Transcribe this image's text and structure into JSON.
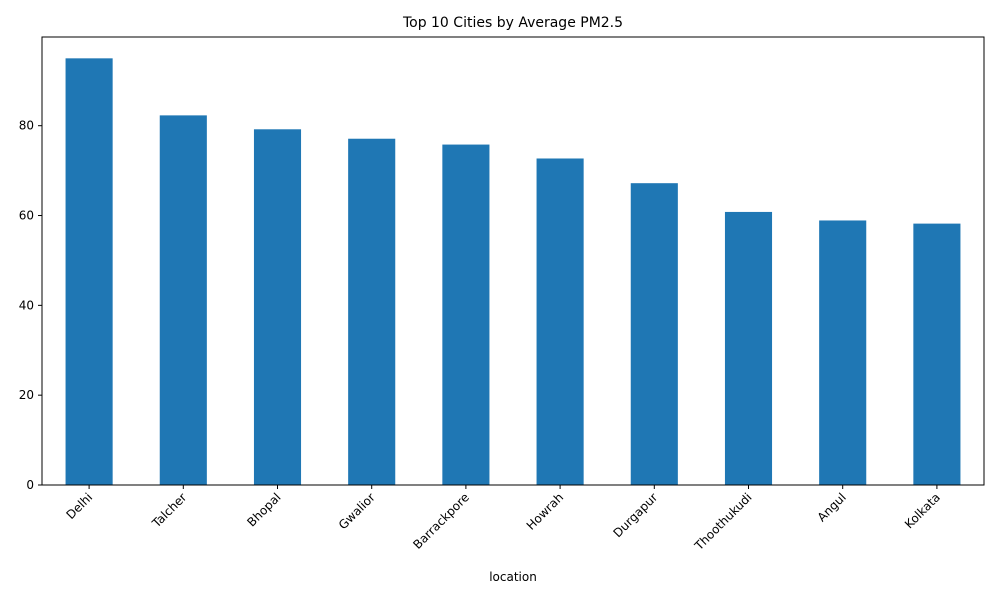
{
  "chart_data": {
    "type": "bar",
    "title": "Top 10 Cities by Average PM2.5",
    "xlabel": "location",
    "ylabel": "",
    "categories": [
      "Delhi",
      "Talcher",
      "Bhopal",
      "Gwalior",
      "Barrackpore",
      "Howrah",
      "Durgapur",
      "Thoothukudi",
      "Angul",
      "Kolkata"
    ],
    "values": [
      95.0,
      82.3,
      79.2,
      77.1,
      75.8,
      72.7,
      67.2,
      60.8,
      58.9,
      58.2
    ],
    "ylim": [
      0,
      99.75
    ],
    "yticks": [
      0,
      20,
      40,
      60,
      80
    ],
    "grid": false,
    "legend": "none",
    "bar_color": "#1f77b4"
  }
}
